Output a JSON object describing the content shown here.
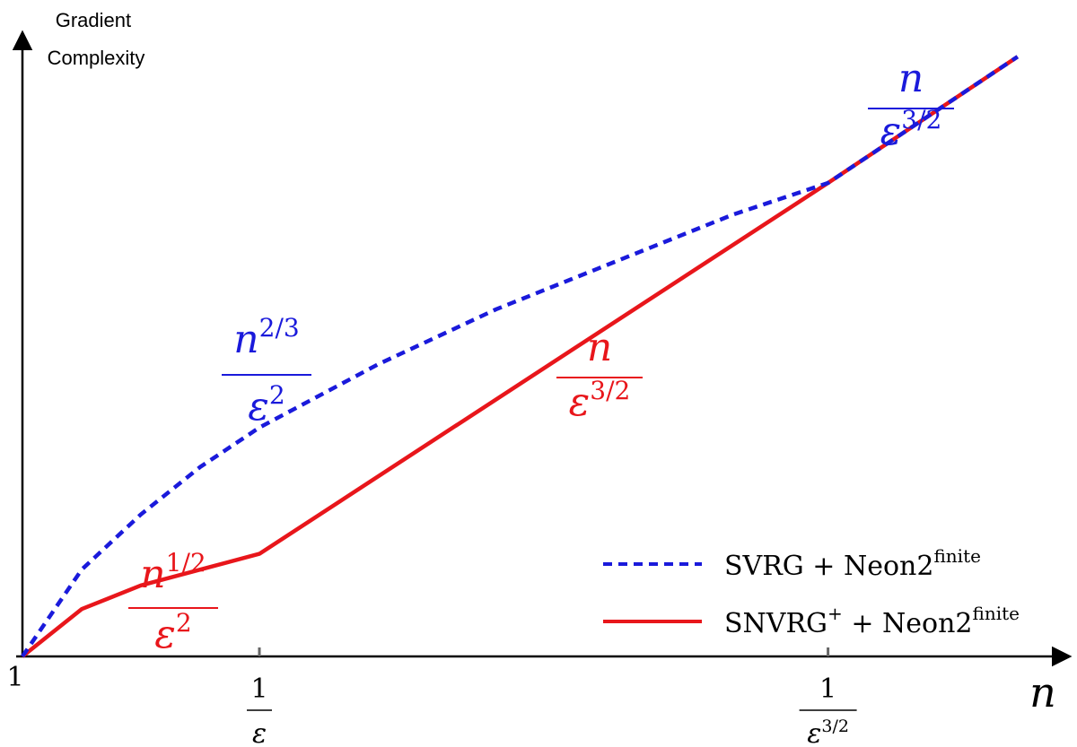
{
  "chart_data": {
    "type": "line",
    "ylabel_lines": [
      "Gradient",
      "Complexity"
    ],
    "xlabel": "n",
    "x_ticks": [
      {
        "label": "1",
        "kind": "plain",
        "x": 0
      },
      {
        "label": "1/ε",
        "kind": "frac",
        "num": "1",
        "den": "ε",
        "den_sup": "",
        "x": 1
      },
      {
        "label": "1/ε^{3/2}",
        "kind": "frac",
        "num": "1",
        "den": "ε",
        "den_sup": "3/2",
        "x": 3.4
      }
    ],
    "series": [
      {
        "name": "SVRG + Neon2^finite",
        "legend_main": "SVRG + Neon2",
        "legend_sup": "finite",
        "color": "#1a1adb",
        "style": "dashed",
        "x": [
          0,
          0.25,
          0.5,
          0.75,
          1,
          1.5,
          2,
          2.5,
          3,
          3.4,
          4.2
        ],
        "y": [
          1,
          1.55,
          1.9,
          2.2,
          2.45,
          2.85,
          3.2,
          3.5,
          3.8,
          4.0,
          4.8
        ]
      },
      {
        "name": "SNVRG^+ + Neon2^finite",
        "legend_main": "SNVRG",
        "legend_sup1": "+",
        "legend_rest": " + Neon2",
        "legend_sup2": "finite",
        "color": "#e8161b",
        "style": "solid",
        "x": [
          0,
          0.25,
          0.5,
          0.75,
          1,
          3.4,
          4.2
        ],
        "y": [
          1,
          1.3,
          1.45,
          1.55,
          1.65,
          4.0,
          4.8
        ]
      }
    ],
    "annotations": [
      {
        "num_base": "n",
        "num_sup": "2/3",
        "den_base": "ε",
        "den_sup": "2",
        "color": "#1a1adb"
      },
      {
        "num_base": "n",
        "num_sup": "1/2",
        "den_base": "ε",
        "den_sup": "2",
        "color": "#e8161b"
      },
      {
        "num_base": "n",
        "num_sup": "",
        "den_base": "ε",
        "den_sup": "3/2",
        "color": "#e8161b"
      },
      {
        "num_base": "n",
        "num_sup": "",
        "den_base": "ε",
        "den_sup": "3/2",
        "color": "#1a1adb"
      }
    ]
  }
}
